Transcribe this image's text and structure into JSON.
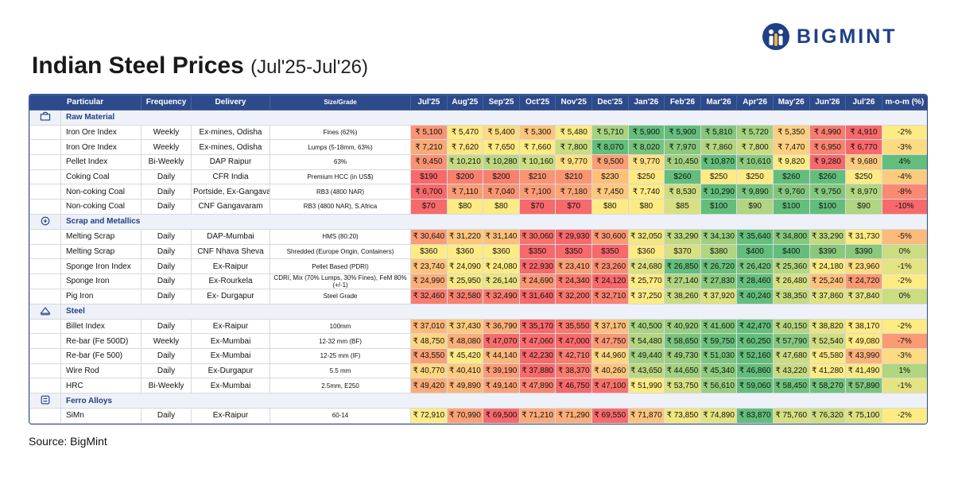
{
  "header": {
    "title": "Indian Steel Prices",
    "period": "(Jul'25-Jul'26)",
    "logo": "BIGMINT"
  },
  "table": {
    "columns": [
      "Particular",
      "Frequency",
      "Delivery",
      "Size/Grade",
      "Jul'25",
      "Aug'25",
      "Sep'25",
      "Oct'25",
      "Nov'25",
      "Dec'25",
      "Jan'26",
      "Feb'26",
      "Mar'26",
      "Apr'26",
      "May'26",
      "Jun'26",
      "Jul'26",
      "m-o-m (%)"
    ],
    "sections": [
      {
        "title": "Raw Material",
        "rows": [
          {
            "particular": "Iron Ore Index",
            "frequency": "Weekly",
            "delivery": "Ex-mines, Odisha",
            "grade": "Fines (62%)",
            "prices": [
              "₹ 5,100",
              "₹ 5,470",
              "₹ 5,400",
              "₹ 5,300",
              "₹ 5,480",
              "₹ 5,710",
              "₹ 5,900",
              "₹ 5,900",
              "₹ 5,810",
              "₹ 5,720",
              "₹ 5,350",
              "₹ 4,990",
              "₹ 4,910"
            ],
            "mom": "-2%"
          },
          {
            "particular": "Iron Ore Index",
            "frequency": "Weekly",
            "delivery": "Ex-mines, Odisha",
            "grade": "Lumps (5-18mm, 63%)",
            "prices": [
              "₹ 7,210",
              "₹ 7,620",
              "₹ 7,650",
              "₹ 7,660",
              "₹ 7,800",
              "₹ 8,070",
              "₹ 8,020",
              "₹ 7,970",
              "₹ 7,860",
              "₹ 7,800",
              "₹ 7,470",
              "₹ 6,950",
              "₹ 6,770"
            ],
            "mom": "-3%"
          },
          {
            "particular": "Pellet Index",
            "frequency": "Bi-Weekly",
            "delivery": "DAP Raipur",
            "grade": "63%",
            "prices": [
              "₹ 9,450",
              "₹ 10,210",
              "₹ 10,280",
              "₹ 10,160",
              "₹ 9,770",
              "₹ 9,500",
              "₹ 9,770",
              "₹ 10,450",
              "₹ 10,870",
              "₹ 10,610",
              "₹ 9,820",
              "₹ 9,280",
              "₹ 9,680"
            ],
            "mom": "4%"
          },
          {
            "particular": "Coking Coal",
            "frequency": "Daily",
            "delivery": "CFR India",
            "grade": "Premium HCC (in US$)",
            "prices": [
              "$190",
              "$200",
              "$200",
              "$210",
              "$210",
              "$230",
              "$250",
              "$260",
              "$250",
              "$250",
              "$260",
              "$260",
              "$250"
            ],
            "mom": "-4%"
          },
          {
            "particular": "Non-coking Coal",
            "frequency": "Daily",
            "delivery": "Portside, Ex-Gangavaram",
            "grade": "RB3 (4800 NAR)",
            "prices": [
              "₹ 6,700",
              "₹ 7,110",
              "₹ 7,040",
              "₹ 7,100",
              "₹ 7,180",
              "₹ 7,450",
              "₹ 7,740",
              "₹ 8,530",
              "₹ 10,290",
              "₹ 9,890",
              "₹ 9,760",
              "₹ 9,750",
              "₹ 8,970"
            ],
            "mom": "-8%"
          },
          {
            "particular": "Non-coking Coal",
            "frequency": "Daily",
            "delivery": "CNF Gangavaram",
            "grade": "RB3 (4800 NAR), S.Africa",
            "prices": [
              "$70",
              "$80",
              "$80",
              "$70",
              "$70",
              "$80",
              "$80",
              "$85",
              "$100",
              "$90",
              "$100",
              "$100",
              "$90"
            ],
            "mom": "-10%"
          }
        ]
      },
      {
        "title": "Scrap and Metallics",
        "rows": [
          {
            "particular": "Melting Scrap",
            "frequency": "Daily",
            "delivery": "DAP-Mumbai",
            "grade": "HMS (80:20)",
            "prices": [
              "₹ 30,640",
              "₹ 31,220",
              "₹ 31,140",
              "₹ 30,060",
              "₹ 29,930",
              "₹ 30,600",
              "₹ 32,050",
              "₹ 33,290",
              "₹ 34,130",
              "₹ 35,640",
              "₹ 34,800",
              "₹ 33,290",
              "₹ 31,730"
            ],
            "mom": "-5%"
          },
          {
            "particular": "Melting Scrap",
            "frequency": "Daily",
            "delivery": "CNF Nhava Sheva",
            "grade": "Shredded (Europe Origin, Containers)",
            "prices": [
              "$360",
              "$360",
              "$360",
              "$350",
              "$350",
              "$350",
              "$360",
              "$370",
              "$380",
              "$400",
              "$400",
              "$390",
              "$390"
            ],
            "mom": "0%"
          },
          {
            "particular": "Sponge Iron Index",
            "frequency": "Daily",
            "delivery": "Ex-Raipur",
            "grade": "Pellet Based (PDRI)",
            "prices": [
              "₹ 23,740",
              "₹ 24,090",
              "₹ 24,080",
              "₹ 22,930",
              "₹ 23,410",
              "₹ 23,260",
              "₹ 24,680",
              "₹ 26,850",
              "₹ 26,720",
              "₹ 26,420",
              "₹ 25,360",
              "₹ 24,180",
              "₹ 23,960"
            ],
            "mom": "-1%"
          },
          {
            "particular": "Sponge Iron",
            "frequency": "Daily",
            "delivery": "Ex-Rourkela",
            "grade": "CDRI, Mix (70% Lumps, 30% Fines), FeM 80% (+/-1)",
            "prices": [
              "₹ 24,990",
              "₹ 25,950",
              "₹ 26,140",
              "₹ 24,690",
              "₹ 24,340",
              "₹ 24,120",
              "₹ 25,770",
              "₹ 27,140",
              "₹ 27,830",
              "₹ 28,460",
              "₹ 26,480",
              "₹ 25,240",
              "₹ 24,720"
            ],
            "mom": "-2%"
          },
          {
            "particular": "Pig Iron",
            "frequency": "Daily",
            "delivery": "Ex- Durgapur",
            "grade": "Steel Grade",
            "prices": [
              "₹ 32,460",
              "₹ 32,580",
              "₹ 32,490",
              "₹ 31,640",
              "₹ 32,200",
              "₹ 32,710",
              "₹ 37,250",
              "₹ 38,260",
              "₹ 37,920",
              "₹ 40,240",
              "₹ 38,350",
              "₹ 37,860",
              "₹ 37,840"
            ],
            "mom": "0%"
          }
        ]
      },
      {
        "title": "Steel",
        "rows": [
          {
            "particular": "Billet Index",
            "frequency": "Daily",
            "delivery": "Ex-Raipur",
            "grade": "100mm",
            "prices": [
              "₹ 37,010",
              "₹ 37,430",
              "₹ 36,790",
              "₹ 35,170",
              "₹ 35,550",
              "₹ 37,170",
              "₹ 40,500",
              "₹ 40,920",
              "₹ 41,600",
              "₹ 42,470",
              "₹ 40,150",
              "₹ 38,820",
              "₹ 38,170"
            ],
            "mom": "-2%"
          },
          {
            "particular": "Re-bar (Fe 500D)",
            "frequency": "Weekly",
            "delivery": "Ex-Mumbai",
            "grade": "12-32 mm (BF)",
            "prices": [
              "₹ 48,750",
              "₹ 48,080",
              "₹ 47,070",
              "₹ 47,060",
              "₹ 47,000",
              "₹ 47,750",
              "₹ 54,480",
              "₹ 58,650",
              "₹ 59,750",
              "₹ 60,250",
              "₹ 57,790",
              "₹ 52,540",
              "₹ 49,080"
            ],
            "mom": "-7%"
          },
          {
            "particular": "Re-bar (Fe 500)",
            "frequency": "Daily",
            "delivery": "Ex-Mumbai",
            "grade": "12-25 mm (IF)",
            "prices": [
              "₹ 43,550",
              "₹ 45,420",
              "₹ 44,140",
              "₹ 42,230",
              "₹ 42,710",
              "₹ 44,960",
              "₹ 49,440",
              "₹ 49,730",
              "₹ 51,030",
              "₹ 52,160",
              "₹ 47,680",
              "₹ 45,580",
              "₹ 43,990"
            ],
            "mom": "-3%"
          },
          {
            "particular": "Wire Rod",
            "frequency": "Daily",
            "delivery": "Ex-Durgapur",
            "grade": "5.5 mm",
            "prices": [
              "₹ 40,770",
              "₹ 40,410",
              "₹ 39,190",
              "₹ 37,880",
              "₹ 38,370",
              "₹ 40,260",
              "₹ 43,650",
              "₹ 44,650",
              "₹ 45,340",
              "₹ 46,860",
              "₹ 43,220",
              "₹ 41,280",
              "₹ 41,490"
            ],
            "mom": "1%"
          },
          {
            "particular": "HRC",
            "frequency": "Bi-Weekly",
            "delivery": "Ex-Mumbai",
            "grade": "2.5mm, E250",
            "prices": [
              "₹ 49,420",
              "₹ 49,890",
              "₹ 49,140",
              "₹ 47,890",
              "₹ 46,750",
              "₹ 47,100",
              "₹ 51,990",
              "₹ 53,750",
              "₹ 56,610",
              "₹ 59,060",
              "₹ 58,450",
              "₹ 58,270",
              "₹ 57,890"
            ],
            "mom": "-1%"
          }
        ]
      },
      {
        "title": "Ferro Alloys",
        "rows": [
          {
            "particular": "SiMn",
            "frequency": "Daily",
            "delivery": "Ex-Raipur",
            "grade": "60-14",
            "prices": [
              "₹ 72,910",
              "₹ 70,990",
              "₹ 69,500",
              "₹ 71,210",
              "₹ 71,290",
              "₹ 69,550",
              "₹ 71,870",
              "₹ 73,850",
              "₹ 74,890",
              "₹ 83,870",
              "₹ 75,760",
              "₹ 76,320",
              "₹ 75,100"
            ],
            "mom": "-2%"
          }
        ]
      }
    ]
  },
  "footer": {
    "source": "Source: BigMint"
  }
}
